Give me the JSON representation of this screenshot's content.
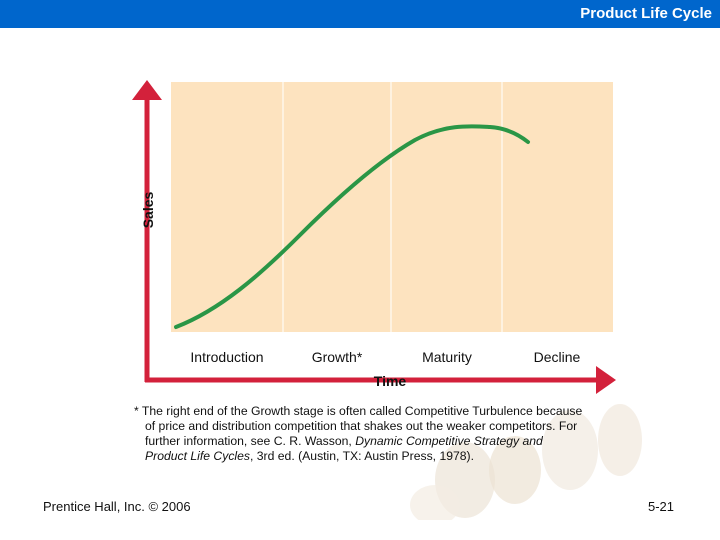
{
  "header": {
    "title": "Product Life Cycle"
  },
  "diagram": {
    "y_axis_label": "Sales",
    "x_axis_label": "Time",
    "stages": [
      "Introduction",
      "Growth*",
      "Maturity",
      "Decline"
    ],
    "colors": {
      "background": "#fde3bf",
      "curve": "#2a9646",
      "axis": "#d3213b"
    }
  },
  "footnote": {
    "line1": "* The right end of the Growth stage is often called Competitive Turbulence because",
    "line2": "of price and distribution competition that shakes out the weaker competitors. For",
    "line3": "further information, see C. R. Wasson, ",
    "line3_italic": "Dynamic Competitive Strategy and",
    "line4_italic": "Product Life Cycles",
    "line4": ", 3rd ed. (Austin, TX: Austin Press, 1978)."
  },
  "footer": {
    "publisher": "Prentice Hall, Inc. ©  2006",
    "slide_number": "5-21"
  }
}
